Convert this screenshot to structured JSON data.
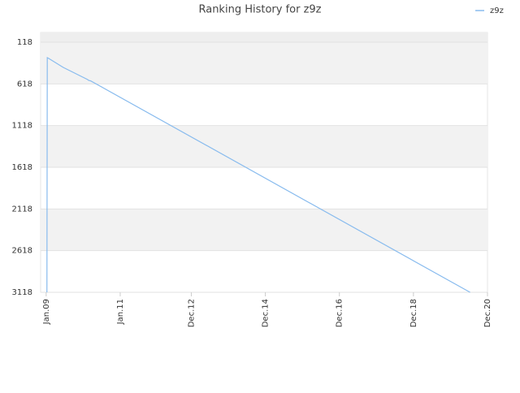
{
  "chart_data": {
    "type": "line",
    "title": "Ranking History for z9z",
    "series": [
      {
        "name": "z9z",
        "color": "#88bbee",
        "x": [
          2009.02,
          2009.03,
          2009.07,
          2009.46,
          2010.12,
          2010.15,
          2010.2,
          2020.45
        ],
        "values": [
          3118,
          303,
          313,
          420,
          566,
          576,
          581,
          3118
        ]
      }
    ],
    "xlim": [
      2008.85,
      2020.92
    ],
    "xticks": [
      {
        "value": 2009.0,
        "label": "Jan.09"
      },
      {
        "value": 2011.0,
        "label": "Jan.11"
      },
      {
        "value": 2012.92,
        "label": "Dec.12"
      },
      {
        "value": 2014.92,
        "label": "Dec.14"
      },
      {
        "value": 2016.92,
        "label": "Dec.16"
      },
      {
        "value": 2018.92,
        "label": "Dec.18"
      },
      {
        "value": 2020.92,
        "label": "Dec.20"
      }
    ],
    "ylim": [
      3118,
      1
    ],
    "yticks": [
      118,
      618,
      1118,
      1618,
      2118,
      2618,
      3118
    ],
    "grid": true,
    "legend": "top-right"
  }
}
